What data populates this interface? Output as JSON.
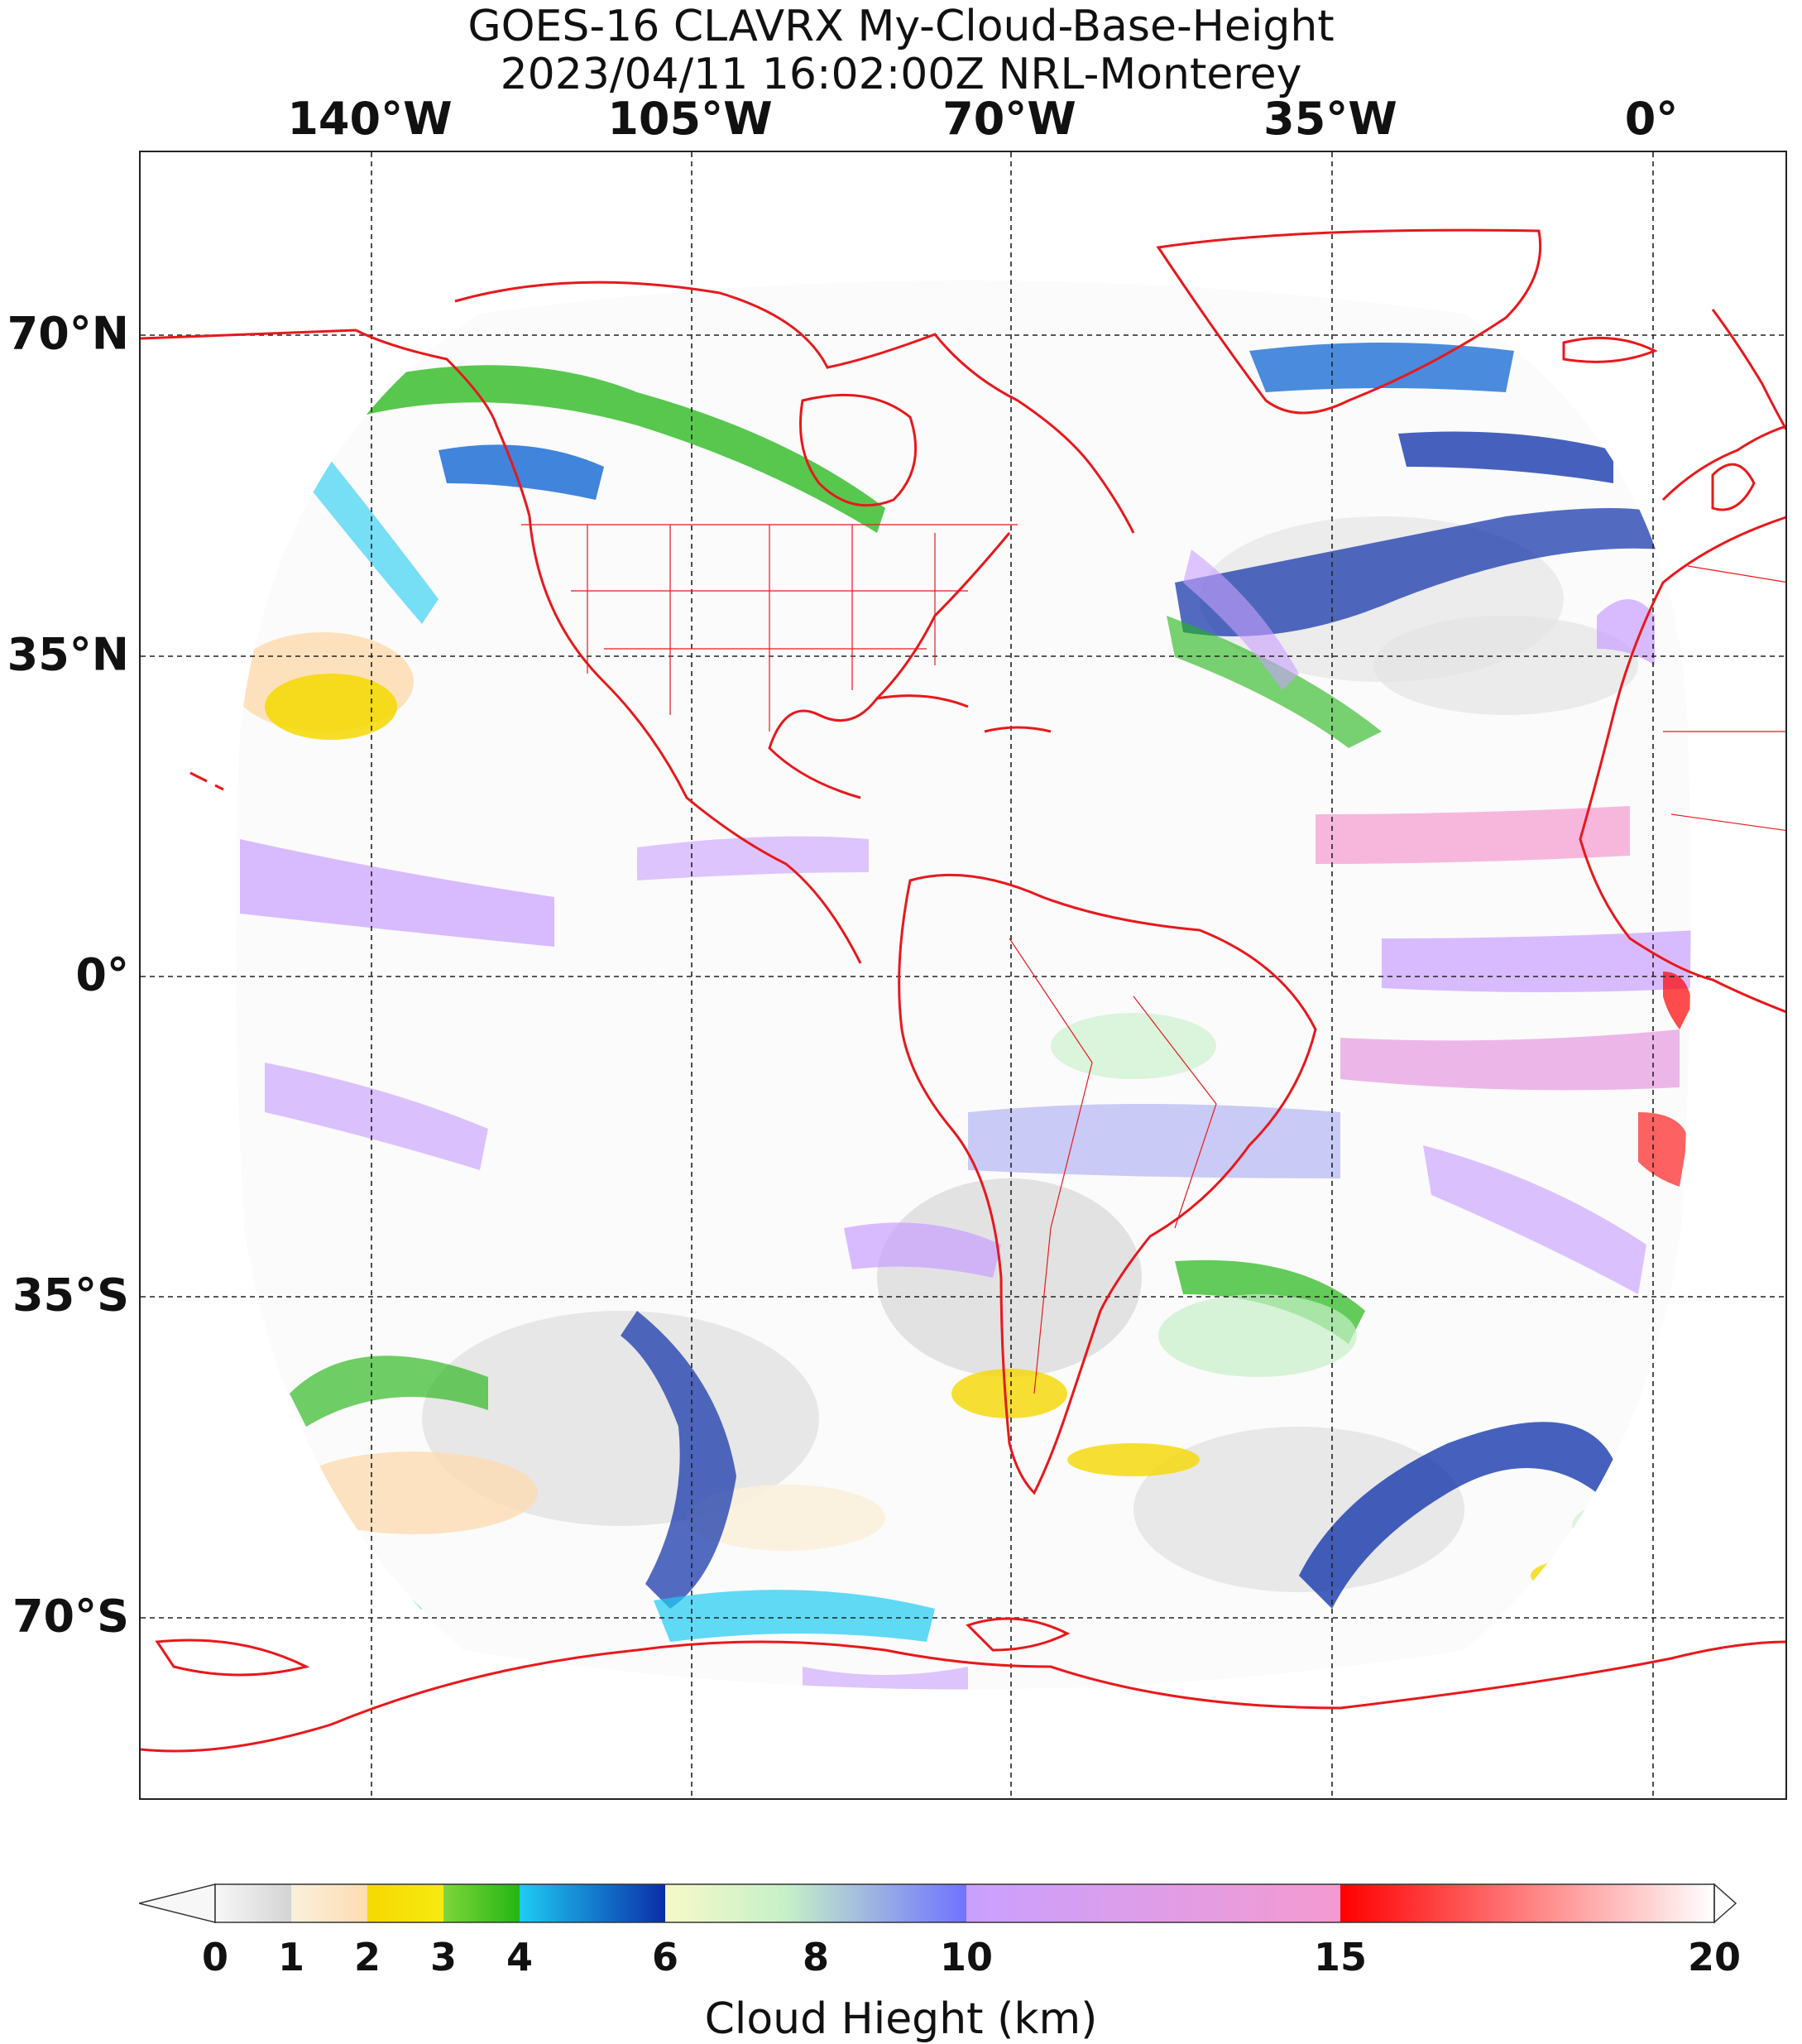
{
  "title": {
    "line1": "GOES-16 CLAVRX My-Cloud-Base-Height",
    "line2": "2023/04/11 16:02:00Z NRL-Monterey"
  },
  "map": {
    "longitude_labels": [
      "140°W",
      "105°W",
      "70°W",
      "35°W",
      "0°"
    ],
    "latitude_labels": [
      "70°N",
      "35°N",
      "0°",
      "35°S",
      "70°S"
    ],
    "gridlines": "dashed",
    "coastline_color": "#e8181c",
    "border_color": "#e8181c"
  },
  "colorbar": {
    "label": "Cloud Hieght (km)",
    "ticks": [
      "0",
      "1",
      "2",
      "3",
      "4",
      "6",
      "8",
      "10",
      "15",
      "20"
    ],
    "range_km": [
      0,
      20
    ],
    "extend": "both",
    "segments": [
      {
        "from": 0,
        "to": 1,
        "colors": [
          "#f7f7f7",
          "#d4d4d4"
        ]
      },
      {
        "from": 1,
        "to": 2,
        "colors": [
          "#fbefdc",
          "#fddcb2"
        ]
      },
      {
        "from": 2,
        "to": 3,
        "colors": [
          "#f5d800",
          "#f7ea10"
        ]
      },
      {
        "from": 3,
        "to": 4,
        "colors": [
          "#7fd63a",
          "#22b614"
        ]
      },
      {
        "from": 4,
        "to": 6,
        "colors": [
          "#1ecbf2",
          "#0a2ea8"
        ]
      },
      {
        "from": 6,
        "to": 10,
        "colors": [
          "#f7f9c8",
          "#c6f0c8",
          "#6f72ff"
        ]
      },
      {
        "from": 10,
        "to": 15,
        "colors": [
          "#c9a0ff",
          "#f59ad0"
        ]
      },
      {
        "from": 15,
        "to": 20,
        "colors": [
          "#ff0000",
          "#ffffff"
        ]
      }
    ]
  }
}
